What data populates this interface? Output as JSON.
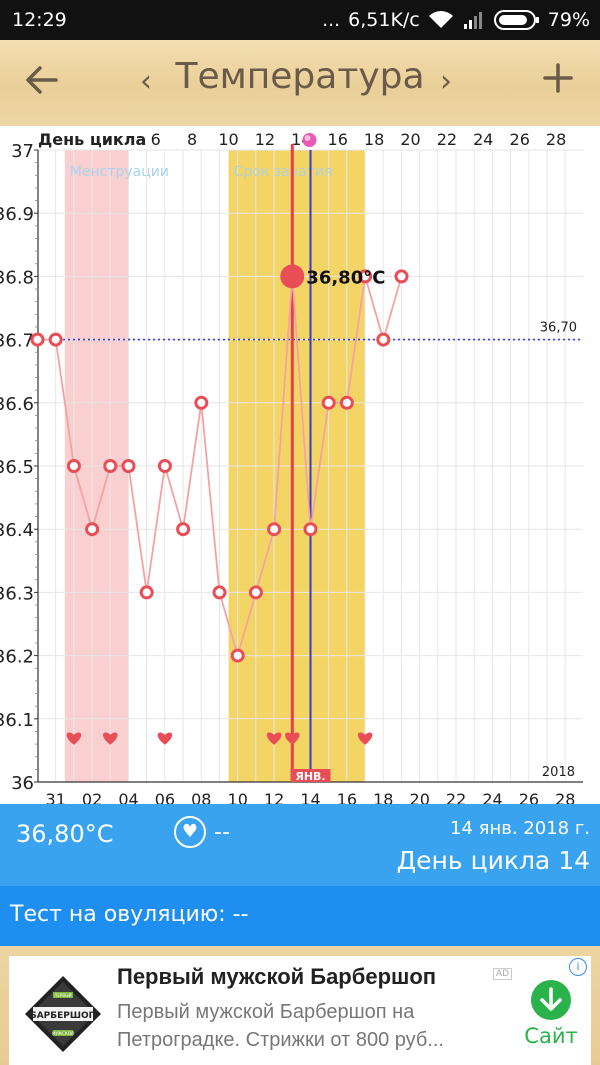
{
  "status_bar": {
    "time": "12:29",
    "network_speed": "6,51K/c",
    "battery": "79%"
  },
  "app_bar": {
    "title": "Температура",
    "back_icon": "arrow-left-icon",
    "prev_icon": "chevron-left-icon",
    "next_icon": "chevron-right-icon",
    "add_icon": "plus-icon"
  },
  "chart_data": {
    "type": "line",
    "top_axis_label": "День цикла",
    "top_ticks": [
      {
        "day": 6,
        "label": "6"
      },
      {
        "day": 8,
        "label": "8"
      },
      {
        "day": 10,
        "label": "10"
      },
      {
        "day": 12,
        "label": "12"
      },
      {
        "day": 14,
        "label": "14"
      },
      {
        "day": 16,
        "label": "16"
      },
      {
        "day": 18,
        "label": "18"
      },
      {
        "day": 20,
        "label": "20"
      },
      {
        "day": 22,
        "label": "22"
      },
      {
        "day": 24,
        "label": "24"
      },
      {
        "day": 26,
        "label": "26"
      },
      {
        "day": 28,
        "label": "28"
      }
    ],
    "bottom_ticks": [
      {
        "day": 1,
        "label": "31"
      },
      {
        "day": 3,
        "label": "02"
      },
      {
        "day": 5,
        "label": "04"
      },
      {
        "day": 7,
        "label": "06"
      },
      {
        "day": 9,
        "label": "08"
      },
      {
        "day": 11,
        "label": "10"
      },
      {
        "day": 13,
        "label": "12"
      },
      {
        "day": 15,
        "label": "14"
      },
      {
        "day": 17,
        "label": "16"
      },
      {
        "day": 19,
        "label": "18"
      },
      {
        "day": 21,
        "label": "20"
      },
      {
        "day": 23,
        "label": "22"
      },
      {
        "day": 25,
        "label": "24"
      },
      {
        "day": 27,
        "label": "26"
      },
      {
        "day": 29,
        "label": "28"
      }
    ],
    "y_ticks": [
      {
        "value": 36.0,
        "label": "36"
      },
      {
        "value": 36.1,
        "label": "36.1"
      },
      {
        "value": 36.2,
        "label": "36.2"
      },
      {
        "value": 36.3,
        "label": "36.3"
      },
      {
        "value": 36.4,
        "label": "36.4"
      },
      {
        "value": 36.5,
        "label": "36.5"
      },
      {
        "value": 36.6,
        "label": "36.6"
      },
      {
        "value": 36.7,
        "label": "36.7"
      },
      {
        "value": 36.8,
        "label": "36.8"
      },
      {
        "value": 36.9,
        "label": "36.9"
      },
      {
        "value": 37.0,
        "label": "37"
      }
    ],
    "ylim": [
      36.0,
      37.0
    ],
    "xlim": [
      0,
      30
    ],
    "bands": [
      {
        "label": "Менструации",
        "from_day": 2,
        "to_day": 5,
        "color": "#f9cfcf",
        "label_color": "#a9d4ef"
      },
      {
        "label": "Срок зачатия",
        "from_day": 11,
        "to_day": 18,
        "color": "#f3d566",
        "label_color": "#b0d2dc"
      }
    ],
    "series": [
      {
        "temperatures": [
          {
            "day": 0,
            "temp": 36.7
          },
          {
            "day": 1,
            "temp": 36.7
          },
          {
            "day": 2,
            "temp": 36.5
          },
          {
            "day": 3,
            "temp": 36.4
          },
          {
            "day": 4,
            "temp": 36.5
          },
          {
            "day": 5,
            "temp": 36.5
          },
          {
            "day": 6,
            "temp": 36.3
          },
          {
            "day": 7,
            "temp": 36.5
          },
          {
            "day": 8,
            "temp": 36.4
          },
          {
            "day": 9,
            "temp": 36.6
          },
          {
            "day": 10,
            "temp": 36.3
          },
          {
            "day": 11,
            "temp": 36.2
          },
          {
            "day": 12,
            "temp": 36.3
          },
          {
            "day": 13,
            "temp": 36.4
          },
          {
            "day": 14,
            "temp": 36.8
          },
          {
            "day": 15,
            "temp": 36.4
          },
          {
            "day": 16,
            "temp": 36.6
          },
          {
            "day": 17,
            "temp": 36.6
          },
          {
            "day": 18,
            "temp": 36.8
          },
          {
            "day": 19,
            "temp": 36.7
          },
          {
            "day": 20,
            "temp": 36.8
          }
        ]
      }
    ],
    "selected": {
      "day": 14,
      "temp": 36.8,
      "label": "36,80°C"
    },
    "reference_line": {
      "value": 36.7,
      "label": "36,70"
    },
    "ovulation_day": 15,
    "heart_days": [
      2,
      4,
      7,
      13,
      14,
      18
    ],
    "month_marker": {
      "day": 15,
      "label": "ЯНВ."
    },
    "year_label": "2018",
    "colors": {
      "line": "#f4a3a3",
      "marker": "#e94e57",
      "selected": "#e94e57",
      "ovulation": "#3a3ac0",
      "today": "#e8404a",
      "reference": "#3a3ae0",
      "grid": "#e6e6e6"
    }
  },
  "info_panel": {
    "temperature": "36,80°C",
    "heart_icon": "heart-circle-icon",
    "mark": "--",
    "date": "14 янв. 2018 г.",
    "cycle_day": "День цикла 14"
  },
  "ovulation_test": {
    "text": "Тест на овуляцию: --"
  },
  "ad": {
    "title": "Первый мужской Барбершоп",
    "badge": "AD",
    "description": "Первый мужской Барбершоп на Петроградке. Стрижки от 800 руб...",
    "cta": "Сайт",
    "logo_text": "БАРБЕРШОП",
    "logo_top": "ПЕРВЫЙ",
    "logo_bottom": "МУЖСКОЙ"
  }
}
